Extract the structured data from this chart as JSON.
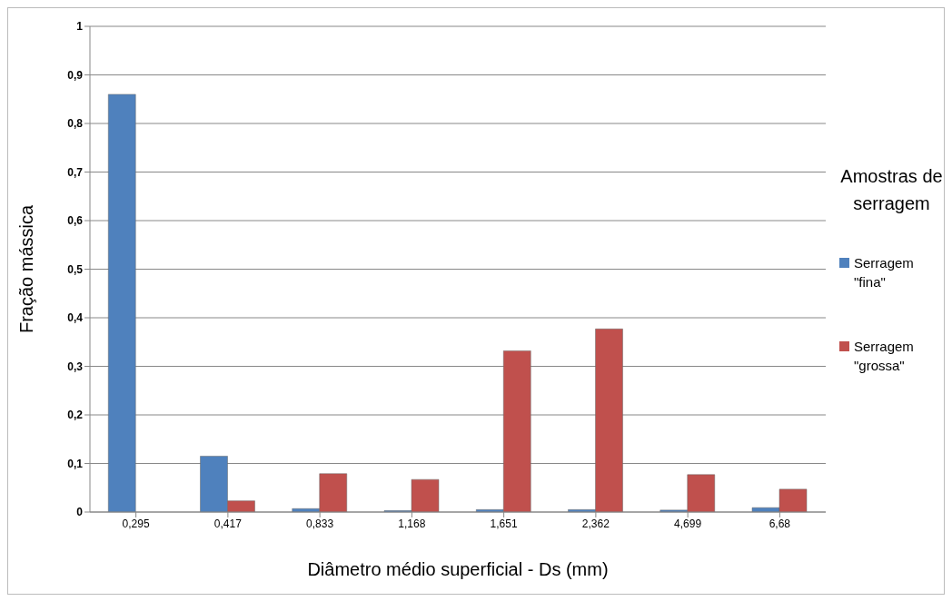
{
  "chart_data": {
    "type": "bar",
    "xlabel": "Diâmetro médio superficial - Ds (mm)",
    "ylabel": "Fração mássica",
    "legend_title": "Amostras de serragem",
    "categories": [
      "0,295",
      "0,417",
      "0,833",
      "1,168",
      "1,651",
      "2,362",
      "4,699",
      "6,68"
    ],
    "series": [
      {
        "name": "Serragem \"fina\"",
        "color": "#4f81bd",
        "values": [
          0.86,
          0.115,
          0.007,
          0.003,
          0.005,
          0.005,
          0.004,
          0.009
        ]
      },
      {
        "name": "Serragem \"grossa\"",
        "color": "#c0504d",
        "values": [
          0,
          0.023,
          0.079,
          0.067,
          0.332,
          0.377,
          0.077,
          0.047
        ]
      }
    ],
    "ylim": [
      0,
      1
    ],
    "yticks": [
      {
        "value": 0,
        "label": "0"
      },
      {
        "value": 0.1,
        "label": "0,1"
      },
      {
        "value": 0.2,
        "label": "0,2"
      },
      {
        "value": 0.3,
        "label": "0,3"
      },
      {
        "value": 0.4,
        "label": "0,4"
      },
      {
        "value": 0.5,
        "label": "0,5"
      },
      {
        "value": 0.6,
        "label": "0,6"
      },
      {
        "value": 0.7,
        "label": "0,7"
      },
      {
        "value": 0.8,
        "label": "0,8"
      },
      {
        "value": 0.9,
        "label": "0,9"
      },
      {
        "value": 1,
        "label": "1"
      }
    ],
    "grid": "y",
    "legend": "right"
  }
}
